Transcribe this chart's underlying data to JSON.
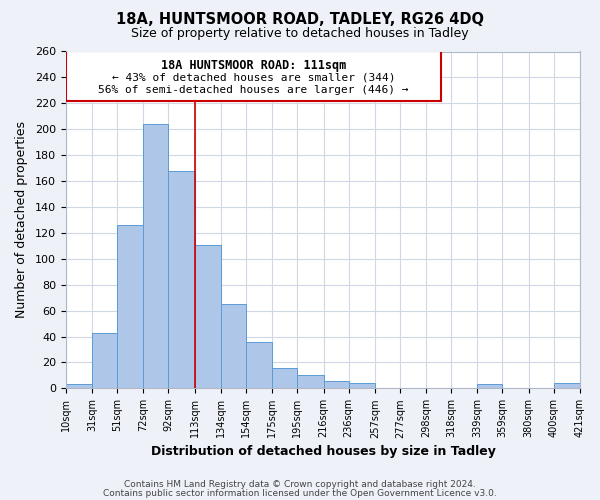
{
  "title": "18A, HUNTSMOOR ROAD, TADLEY, RG26 4DQ",
  "subtitle": "Size of property relative to detached houses in Tadley",
  "xlabel": "Distribution of detached houses by size in Tadley",
  "ylabel": "Number of detached properties",
  "bar_left_edges": [
    10,
    31,
    51,
    72,
    92,
    113,
    134,
    154,
    175,
    195,
    216,
    236,
    257,
    277,
    298,
    318,
    339,
    359,
    380,
    400
  ],
  "bar_heights": [
    3,
    43,
    126,
    204,
    168,
    111,
    65,
    36,
    16,
    10,
    6,
    4,
    0,
    0,
    0,
    0,
    3,
    0,
    0,
    4
  ],
  "bar_widths": [
    21,
    20,
    21,
    20,
    21,
    21,
    20,
    21,
    20,
    21,
    20,
    21,
    20,
    21,
    20,
    21,
    20,
    21,
    20,
    21
  ],
  "tick_labels": [
    "10sqm",
    "31sqm",
    "51sqm",
    "72sqm",
    "92sqm",
    "113sqm",
    "134sqm",
    "154sqm",
    "175sqm",
    "195sqm",
    "216sqm",
    "236sqm",
    "257sqm",
    "277sqm",
    "298sqm",
    "318sqm",
    "339sqm",
    "359sqm",
    "380sqm",
    "400sqm",
    "421sqm"
  ],
  "tick_positions": [
    10,
    31,
    51,
    72,
    92,
    113,
    134,
    154,
    175,
    195,
    216,
    236,
    257,
    277,
    298,
    318,
    339,
    359,
    380,
    400,
    421
  ],
  "bar_color": "#aec6e8",
  "bar_edge_color": "#5b9bd5",
  "vline_x": 113,
  "vline_color": "#cc0000",
  "ylim": [
    0,
    260
  ],
  "xlim": [
    10,
    421
  ],
  "yticks": [
    0,
    20,
    40,
    60,
    80,
    100,
    120,
    140,
    160,
    180,
    200,
    220,
    240,
    260
  ],
  "annotation_line1": "18A HUNTSMOOR ROAD: 111sqm",
  "annotation_line2": "← 43% of detached houses are smaller (344)",
  "annotation_line3": "56% of semi-detached houses are larger (446) →",
  "footer_line1": "Contains HM Land Registry data © Crown copyright and database right 2024.",
  "footer_line2": "Contains public sector information licensed under the Open Government Licence v3.0.",
  "bg_color": "#eef2f8",
  "plot_bg_color": "#ffffff",
  "grid_color": "#d0d8e8"
}
